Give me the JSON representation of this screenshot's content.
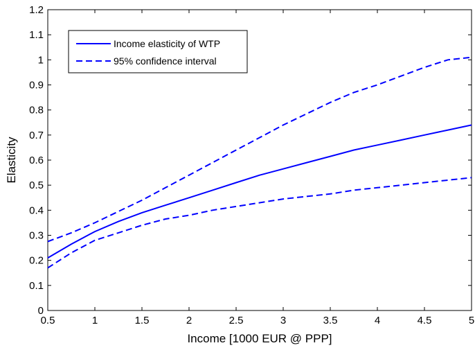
{
  "chart_data": {
    "type": "line",
    "title": "",
    "xlabel": "Income [1000 EUR @ PPP]",
    "ylabel": "Elasticity",
    "xlim": [
      0.5,
      5
    ],
    "ylim": [
      0,
      1.2
    ],
    "xticks": [
      0.5,
      1,
      1.5,
      2,
      2.5,
      3,
      3.5,
      4,
      4.5,
      5
    ],
    "xtick_labels": [
      "0.5",
      "1",
      "1.5",
      "2",
      "2.5",
      "3",
      "3.5",
      "4",
      "4.5",
      "5"
    ],
    "yticks": [
      0,
      0.1,
      0.2,
      0.3,
      0.4,
      0.5,
      0.6,
      0.7,
      0.8,
      0.9,
      1,
      1.1,
      1.2
    ],
    "ytick_labels": [
      "0",
      "0.1",
      "0.2",
      "0.3",
      "0.4",
      "0.5",
      "0.6",
      "0.7",
      "0.8",
      "0.9",
      "1",
      "1.1",
      "1.2"
    ],
    "grid": false,
    "legend_position": "top-left",
    "line_color": "#0000ff",
    "series": [
      {
        "name": "Income elasticity of WTP",
        "style": "solid",
        "x": [
          0.5,
          0.75,
          1,
          1.25,
          1.5,
          1.75,
          2,
          2.25,
          2.5,
          2.75,
          3,
          3.25,
          3.5,
          3.75,
          4,
          4.25,
          4.5,
          4.75,
          5
        ],
        "y": [
          0.21,
          0.265,
          0.315,
          0.355,
          0.39,
          0.42,
          0.45,
          0.48,
          0.51,
          0.54,
          0.565,
          0.59,
          0.615,
          0.64,
          0.66,
          0.68,
          0.7,
          0.72,
          0.74
        ]
      },
      {
        "name": "95% confidence interval",
        "style": "dashed",
        "x": [
          0.5,
          0.75,
          1,
          1.25,
          1.5,
          1.75,
          2,
          2.25,
          2.5,
          2.75,
          3,
          3.25,
          3.5,
          3.75,
          4,
          4.25,
          4.5,
          4.75,
          5
        ],
        "y": [
          0.275,
          0.31,
          0.35,
          0.395,
          0.44,
          0.49,
          0.54,
          0.59,
          0.64,
          0.69,
          0.74,
          0.785,
          0.83,
          0.87,
          0.9,
          0.935,
          0.97,
          1.0,
          1.01
        ]
      },
      {
        "name": "95% confidence interval",
        "style": "dashed",
        "show_in_legend": false,
        "x": [
          0.5,
          0.75,
          1,
          1.25,
          1.5,
          1.75,
          2,
          2.25,
          2.5,
          2.75,
          3,
          3.25,
          3.5,
          3.75,
          4,
          4.25,
          4.5,
          4.75,
          5
        ],
        "y": [
          0.17,
          0.23,
          0.28,
          0.31,
          0.34,
          0.365,
          0.38,
          0.4,
          0.415,
          0.43,
          0.445,
          0.455,
          0.465,
          0.48,
          0.49,
          0.5,
          0.51,
          0.52,
          0.53
        ]
      }
    ]
  }
}
